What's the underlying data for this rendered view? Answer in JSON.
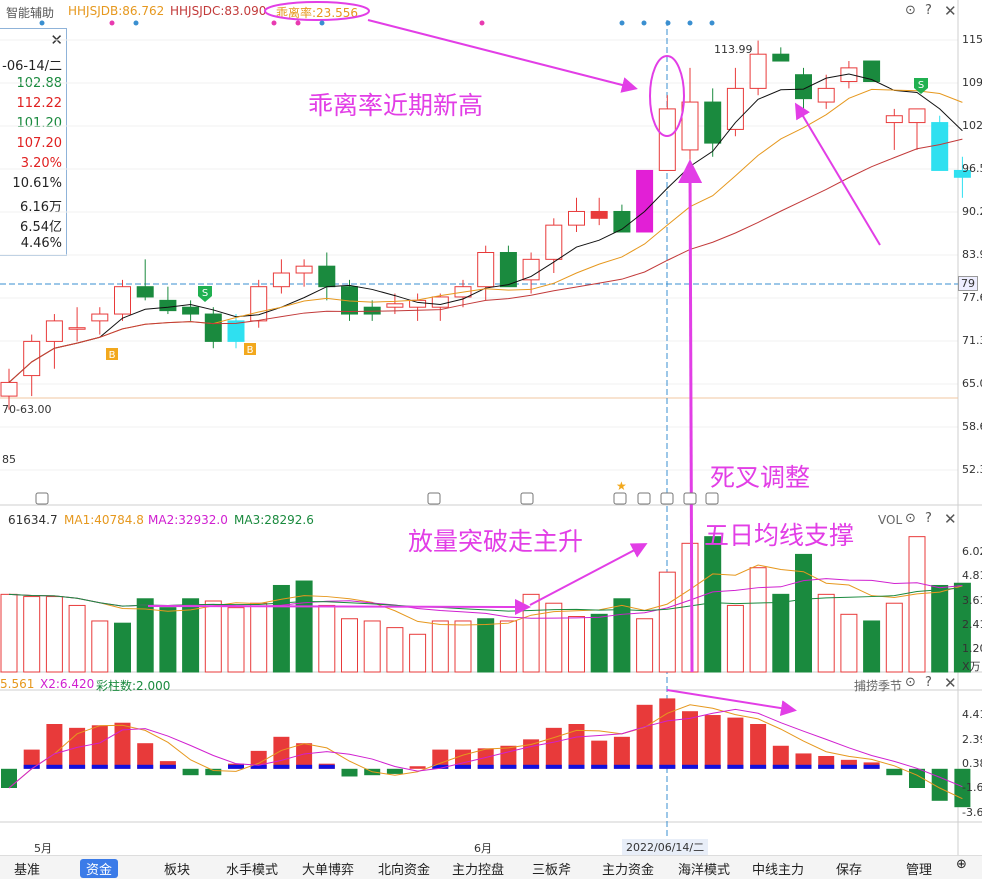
{
  "topbar": {
    "name": "智能辅助",
    "hhjsjdb": "HHJSJDB:86.762",
    "hhjsjdc": "HHJSJDC:83.090",
    "guililv": "乖离率:23.556"
  },
  "infobox": {
    "date": "-06-14/二",
    "values": [
      "102.88",
      "112.22",
      "101.20",
      "107.20",
      "3.20%",
      "10.61%",
      "6.16万",
      "6.54亿",
      "4.46%"
    ]
  },
  "main_axis": {
    "ticks": [
      "115",
      "109",
      "102",
      "96.5",
      "90.2",
      "83.9",
      "77.6",
      "71.3",
      "65.0",
      "58.6",
      "52.3"
    ],
    "highlight": "79"
  },
  "annotations": {
    "high_label": "113.99",
    "low_range": "70-63.00",
    "low_label": "85",
    "guililv_note": "乖离率近期新高",
    "death_cross": "死叉调整",
    "volume_breakout": "放量突破走主升",
    "ma5_support": "五日均线支撑"
  },
  "vol_header": {
    "last": "61634.7",
    "ma1": "MA1:40784.8",
    "ma2": "MA2:32932.0",
    "ma3": "MA3:28292.6",
    "title": "VOL"
  },
  "vol_axis": {
    "ticks": [
      "6.02",
      "4.81",
      "3.61",
      "2.41",
      "1.20"
    ],
    "unit": "X万"
  },
  "ind_header": {
    "x1": "5.561",
    "x2": "X2:6.420",
    "caizhu": "彩柱数:2.000",
    "title": "捕捞季节"
  },
  "ind_axis": {
    "ticks": [
      "4.41",
      "2.39",
      "0.38",
      "-1.6",
      "-3.6"
    ]
  },
  "date_axis": {
    "may": "5月",
    "jun": "6月",
    "cursor": "2022/06/14/二"
  },
  "tabs": [
    "基准",
    "资金",
    "板块",
    "水手模式",
    "大单博弈",
    "北向资金",
    "主力控盘",
    "三板斧",
    "主力资金",
    "海洋模式",
    "中线主力",
    "保存",
    "管理"
  ],
  "active_tab": "资金",
  "colors": {
    "up": "#e83a3a",
    "down": "#1a8a3e",
    "cyan": "#2fe0f0",
    "magenta": "#e21fd6",
    "ma_black": "#111111",
    "ma_orange": "#e6981e",
    "ma_red": "#c23a3a",
    "annot": "#e23ee6"
  },
  "chart_data": [
    {
      "type": "candlestick",
      "title": "",
      "ylim": [
        49,
        117
      ],
      "series": [
        {
          "name": "K",
          "values": [
            [
              62,
              66,
              60,
              64
            ],
            [
              65,
              71,
              62,
              70
            ],
            [
              70,
              74,
              66,
              73
            ],
            [
              72,
              75,
              70,
              72
            ],
            [
              73,
              75,
              71,
              74
            ],
            [
              74,
              79,
              73,
              78
            ],
            [
              78,
              82,
              76,
              76.5
            ],
            [
              76,
              78,
              74,
              74.5
            ],
            [
              75,
              76,
              73,
              74
            ],
            [
              74,
              75,
              69,
              70
            ],
            [
              70,
              74,
              69,
              73
            ],
            [
              73,
              79,
              72,
              78
            ],
            [
              78,
              82,
              77,
              80
            ],
            [
              80,
              82,
              78,
              81
            ],
            [
              81,
              83,
              76,
              78
            ],
            [
              78,
              79,
              73,
              74
            ],
            [
              74,
              76,
              73,
              75
            ],
            [
              75,
              77,
              74,
              75.5
            ],
            [
              75,
              77,
              73,
              76
            ],
            [
              75,
              77,
              73,
              76.5
            ],
            [
              76.5,
              79,
              75,
              78
            ],
            [
              78,
              84,
              76,
              83
            ],
            [
              83,
              84,
              78,
              78
            ],
            [
              79,
              83,
              77,
              82
            ],
            [
              82,
              88,
              80,
              87
            ],
            [
              87,
              91,
              86,
              89
            ],
            [
              89,
              91,
              87,
              88
            ],
            [
              89,
              90,
              86,
              86
            ],
            [
              86,
              95,
              86,
              95
            ],
            [
              95,
              106,
              95,
              104
            ],
            [
              98,
              110,
              96,
              105
            ],
            [
              105,
              107,
              97,
              99
            ],
            [
              101,
              110,
              100,
              107
            ],
            [
              107,
              113.99,
              106,
              112
            ],
            [
              112,
              113,
              111,
              111
            ],
            [
              109,
              110,
              103,
              105.5
            ],
            [
              105,
              109,
              104,
              107
            ],
            [
              108,
              111,
              107,
              110
            ],
            [
              111,
              111,
              108,
              108
            ],
            [
              102,
              104,
              98,
              103
            ],
            [
              102,
              104,
              98,
              104
            ],
            [
              102,
              103,
              95,
              95
            ],
            [
              95,
              97,
              91,
              94
            ]
          ],
          "colors": [
            "up",
            "up",
            "up",
            "up",
            "up",
            "up",
            "down",
            "down",
            "down",
            "down",
            "cyan",
            "up",
            "up",
            "up",
            "down",
            "down",
            "down",
            "up",
            "up",
            "up",
            "up",
            "up",
            "down",
            "up",
            "up",
            "up",
            "up",
            "down",
            "magenta",
            "up",
            "up",
            "down",
            "up",
            "up",
            "down",
            "down",
            "up",
            "up",
            "down",
            "up",
            "up",
            "cyan",
            "cyan"
          ]
        }
      ]
    },
    {
      "type": "bar",
      "title": "VOL",
      "ylim": [
        0,
        6.4
      ],
      "values": [
        3.5,
        3.4,
        3.4,
        3.0,
        2.3,
        2.2,
        3.3,
        2.9,
        3.3,
        3.2,
        2.9,
        3.1,
        3.9,
        4.1,
        3.0,
        2.4,
        2.3,
        2.0,
        1.7,
        2.3,
        2.3,
        2.4,
        2.3,
        3.5,
        3.1,
        2.5,
        2.6,
        3.3,
        2.4,
        4.5,
        5.8,
        6.1,
        3.0,
        4.7,
        3.5,
        5.3,
        3.5,
        2.6,
        2.3,
        3.1,
        6.1,
        3.9,
        4.0
      ],
      "colors": [
        "up",
        "up",
        "up",
        "up",
        "up",
        "down",
        "down",
        "down",
        "down",
        "up",
        "up",
        "up",
        "down",
        "down",
        "up",
        "up",
        "up",
        "up",
        "up",
        "up",
        "up",
        "down",
        "up",
        "up",
        "up",
        "up",
        "down",
        "down",
        "up",
        "up",
        "up",
        "down",
        "up",
        "up",
        "down",
        "down",
        "up",
        "up",
        "down",
        "up",
        "up",
        "down",
        "down"
      ]
    },
    {
      "type": "bar",
      "title": "捕捞季节",
      "ylim": [
        -4,
        6
      ],
      "values": [
        -1.5,
        1.5,
        3.5,
        3.2,
        3.4,
        3.6,
        2.0,
        0.6,
        -0.5,
        -0.5,
        0.4,
        1.4,
        2.5,
        2.0,
        0.4,
        -0.6,
        -0.5,
        -0.4,
        0.2,
        1.5,
        1.5,
        1.6,
        1.8,
        2.3,
        3.2,
        3.5,
        2.2,
        2.5,
        5.0,
        5.5,
        4.5,
        4.2,
        4.0,
        3.5,
        1.8,
        1.2,
        1.0,
        0.7,
        0.5,
        -0.5,
        -1.5,
        -2.5,
        -3.0
      ]
    }
  ]
}
